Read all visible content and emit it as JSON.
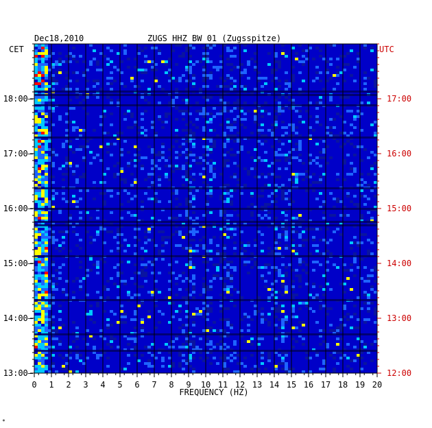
{
  "header": {
    "date": "Dec18,2010",
    "station": "ZUGS HHZ BW 01 (Zugsspitze)"
  },
  "chart_data": {
    "type": "heatmap",
    "xlabel": "FREQUENCY (HZ)",
    "xlim": [
      0,
      20
    ],
    "x_ticks": [
      0,
      1,
      2,
      3,
      4,
      5,
      6,
      7,
      8,
      9,
      10,
      11,
      12,
      13,
      14,
      15,
      16,
      17,
      18,
      19,
      20
    ],
    "left_axis": {
      "label": "CET",
      "ticks": [
        "18:00",
        "17:00",
        "16:00",
        "15:00",
        "14:00",
        "13:00"
      ],
      "color": "#000000"
    },
    "right_axis": {
      "label": "UTC",
      "ticks": [
        "17:00",
        "16:00",
        "15:00",
        "14:00",
        "13:00",
        "12:00"
      ],
      "color": "#cc0000"
    },
    "colors": {
      "background": "#0000c8",
      "low": "#0a14a0",
      "mid": "#1e64ff",
      "high": "#00c8ff",
      "peak": "#ffff00",
      "max": "#ff0000"
    }
  },
  "footer_mark": "*"
}
